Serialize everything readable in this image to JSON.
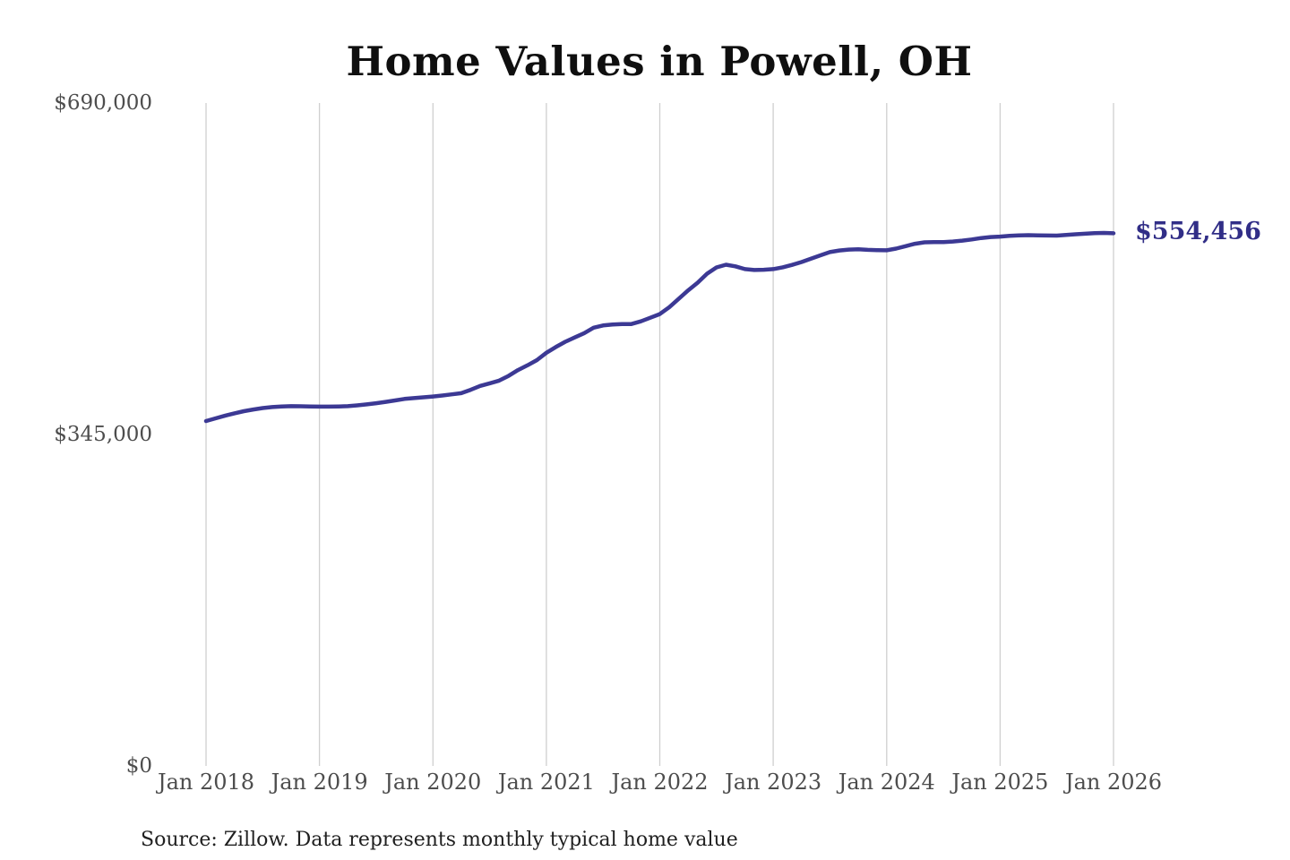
{
  "chart": {
    "title": "Home Values in Powell, OH",
    "end_label": "$554,456",
    "source_note": "Source: Zillow. Data represents monthly typical home value",
    "line_color": "#3c3994",
    "end_label_color": "#312e87",
    "grid_color": "#cfcfcf",
    "axis_label_color": "#4d4d4d",
    "title_color": "#0f0f0f",
    "background_color": "#ffffff"
  },
  "chart_data": {
    "type": "line",
    "title": "Home Values in Powell, OH",
    "series_name": "Monthly typical home value",
    "source": "Source: Zillow. Data represents monthly typical home value",
    "xlabel": "",
    "ylabel": "",
    "legend": "none",
    "grid": "vertical-only",
    "ylim": [
      0,
      690000
    ],
    "y_ticks": [
      0,
      345000,
      690000
    ],
    "y_tick_labels": [
      "$0",
      "$345,000",
      "$690,000"
    ],
    "x_tick_month_indices": [
      0,
      12,
      24,
      36,
      48,
      60,
      72,
      84,
      96
    ],
    "x_tick_labels": [
      "Jan 2018",
      "Jan 2019",
      "Jan 2020",
      "Jan 2021",
      "Jan 2022",
      "Jan 2023",
      "Jan 2024",
      "Jan 2025",
      "Jan 2026"
    ],
    "final_value": 554456,
    "final_value_label": "$554,456",
    "x": [
      "2018-01",
      "2018-02",
      "2018-03",
      "2018-04",
      "2018-05",
      "2018-06",
      "2018-07",
      "2018-08",
      "2018-09",
      "2018-10",
      "2018-11",
      "2018-12",
      "2019-01",
      "2019-02",
      "2019-03",
      "2019-04",
      "2019-05",
      "2019-06",
      "2019-07",
      "2019-08",
      "2019-09",
      "2019-10",
      "2019-11",
      "2019-12",
      "2020-01",
      "2020-02",
      "2020-03",
      "2020-04",
      "2020-05",
      "2020-06",
      "2020-07",
      "2020-08",
      "2020-09",
      "2020-10",
      "2020-11",
      "2020-12",
      "2021-01",
      "2021-02",
      "2021-03",
      "2021-04",
      "2021-05",
      "2021-06",
      "2021-07",
      "2021-08",
      "2021-09",
      "2021-10",
      "2021-11",
      "2021-12",
      "2022-01",
      "2022-02",
      "2022-03",
      "2022-04",
      "2022-05",
      "2022-06",
      "2022-07",
      "2022-08",
      "2022-09",
      "2022-10",
      "2022-11",
      "2022-12",
      "2023-01",
      "2023-02",
      "2023-03",
      "2023-04",
      "2023-05",
      "2023-06",
      "2023-07",
      "2023-08",
      "2023-09",
      "2023-10",
      "2023-11",
      "2023-12",
      "2024-01",
      "2024-02",
      "2024-03",
      "2024-04",
      "2024-05",
      "2024-06",
      "2024-07",
      "2024-08",
      "2024-09",
      "2024-10",
      "2024-11",
      "2024-12",
      "2025-01",
      "2025-02",
      "2025-03",
      "2025-04",
      "2025-05",
      "2025-06",
      "2025-07",
      "2025-08",
      "2025-09",
      "2025-10",
      "2025-11",
      "2025-12",
      "2026-01"
    ],
    "values": [
      359000,
      361800,
      364500,
      367000,
      369200,
      371000,
      372500,
      373500,
      374200,
      374500,
      374400,
      374200,
      374000,
      374000,
      374200,
      374500,
      375300,
      376300,
      377500,
      378900,
      380400,
      382000,
      382900,
      383700,
      384500,
      385600,
      386800,
      388000,
      391500,
      395500,
      398200,
      401000,
      406000,
      412000,
      417000,
      422400,
      430000,
      436000,
      441500,
      446000,
      450500,
      456100,
      458500,
      459500,
      460000,
      460000,
      462800,
      466500,
      470300,
      477500,
      486200,
      495000,
      503000,
      512400,
      518900,
      521700,
      520000,
      517100,
      516200,
      516500,
      517100,
      519000,
      521500,
      524500,
      528000,
      531500,
      534800,
      536500,
      537500,
      537700,
      537200,
      536900,
      536700,
      538500,
      541000,
      543500,
      545000,
      545300,
      545200,
      545800,
      546800,
      548000,
      549500,
      550500,
      551000,
      551800,
      552300,
      552500,
      552300,
      552100,
      552000,
      552700,
      553400,
      554000,
      554500,
      554800,
      554456
    ]
  }
}
